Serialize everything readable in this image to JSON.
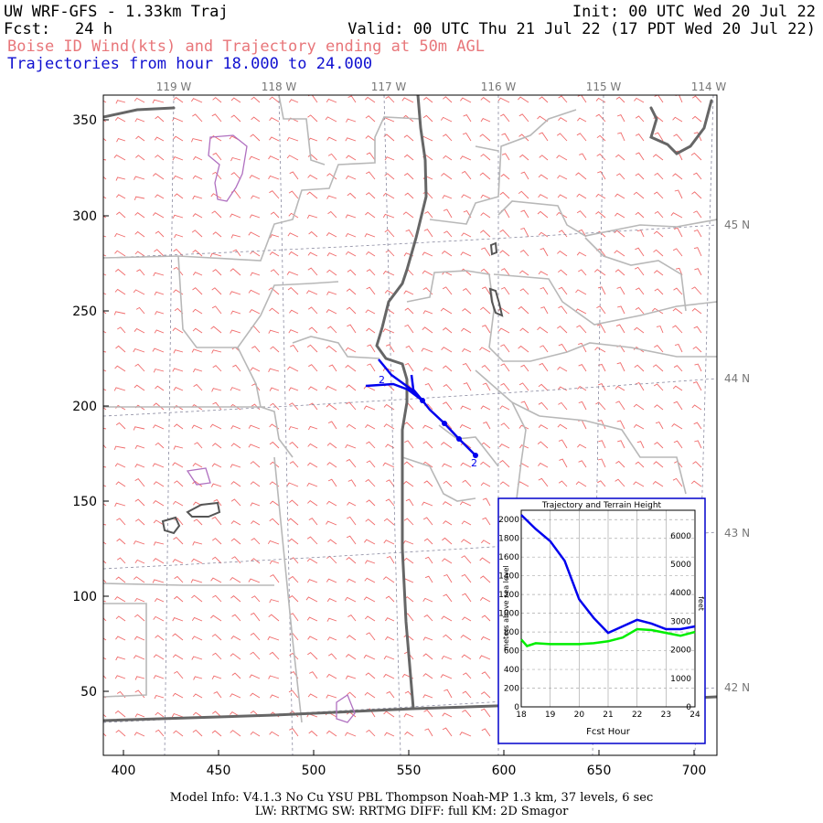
{
  "header": {
    "title": "UW WRF-GFS - 1.33km Traj",
    "init": "Init: 00 UTC Wed 20 Jul 22",
    "fcst_label": "Fcst:",
    "fcst_value": "24 h",
    "valid": "Valid: 00 UTC Thu 21 Jul 22 (17 PDT Wed 20 Jul 22)",
    "subtitle_wind": "Boise ID Wind(kts) and Trajectory ending at 50m AGL",
    "subtitle_traj": "Trajectories from hour  18.000 to  24.000"
  },
  "map": {
    "top_lon_labels": [
      "119 W",
      "118 W",
      "117 W",
      "116 W",
      "115 W",
      "114 W"
    ],
    "right_lat_labels": [
      "45 N",
      "44 N",
      "43 N",
      "42 N"
    ],
    "y_ticks": [
      "350",
      "300",
      "250",
      "200",
      "150",
      "100",
      "50"
    ],
    "x_ticks": [
      "400",
      "450",
      "500",
      "550",
      "600",
      "650",
      "700"
    ],
    "traj_marker": "2",
    "colors": {
      "barb": "#f06a6a",
      "state": "#888888",
      "county": "#b4b4b4",
      "traj": "#0000ee",
      "city": "#b070c0"
    }
  },
  "inset": {
    "title": "Trajectory and Terrain Height",
    "ylabel_left": "meters above sea level",
    "ylabel_right": "feet",
    "xlabel": "Fcst Hour",
    "left_ticks": [
      "2000",
      "1800",
      "1600",
      "1400",
      "1200",
      "1000",
      "800",
      "600",
      "400",
      "200",
      "0"
    ],
    "right_ticks": [
      "6000",
      "5000",
      "4000",
      "3000",
      "2000",
      "1000",
      "0"
    ],
    "x_ticks": [
      "18",
      "19",
      "20",
      "21",
      "22",
      "23",
      "24"
    ]
  },
  "chart_data": {
    "type": "line",
    "title": "Trajectory and Terrain Height",
    "xlabel": "Fcst Hour",
    "ylabel": "meters above sea level",
    "xlim": [
      18,
      24
    ],
    "ylim": [
      0,
      2100
    ],
    "series": [
      {
        "color": "#0000ee",
        "x": [
          18.0,
          18.5,
          19.0,
          19.5,
          20.0,
          20.5,
          21.0,
          21.5,
          22.0,
          22.5,
          23.0,
          23.5,
          24.0
        ],
        "y": [
          2050,
          1900,
          1770,
          1560,
          1150,
          950,
          790,
          860,
          930,
          890,
          830,
          830,
          860
        ]
      },
      {
        "color": "#00ee00",
        "x": [
          18.0,
          18.2,
          18.5,
          19.0,
          19.5,
          20.0,
          20.5,
          21.0,
          21.5,
          22.0,
          22.5,
          23.0,
          23.5,
          24.0
        ],
        "y": [
          720,
          650,
          680,
          670,
          670,
          670,
          680,
          700,
          740,
          830,
          820,
          790,
          760,
          800
        ]
      }
    ]
  },
  "footer": {
    "line1": "Model Info: V4.1.3    No Cu    YSU PBL   Thompson     Noah-MP    1.3 km,  37 levels,     6 sec",
    "line2": "LW: RRTMG SW: RRTMG    DIFF: full    KM: 2D Smagor"
  }
}
